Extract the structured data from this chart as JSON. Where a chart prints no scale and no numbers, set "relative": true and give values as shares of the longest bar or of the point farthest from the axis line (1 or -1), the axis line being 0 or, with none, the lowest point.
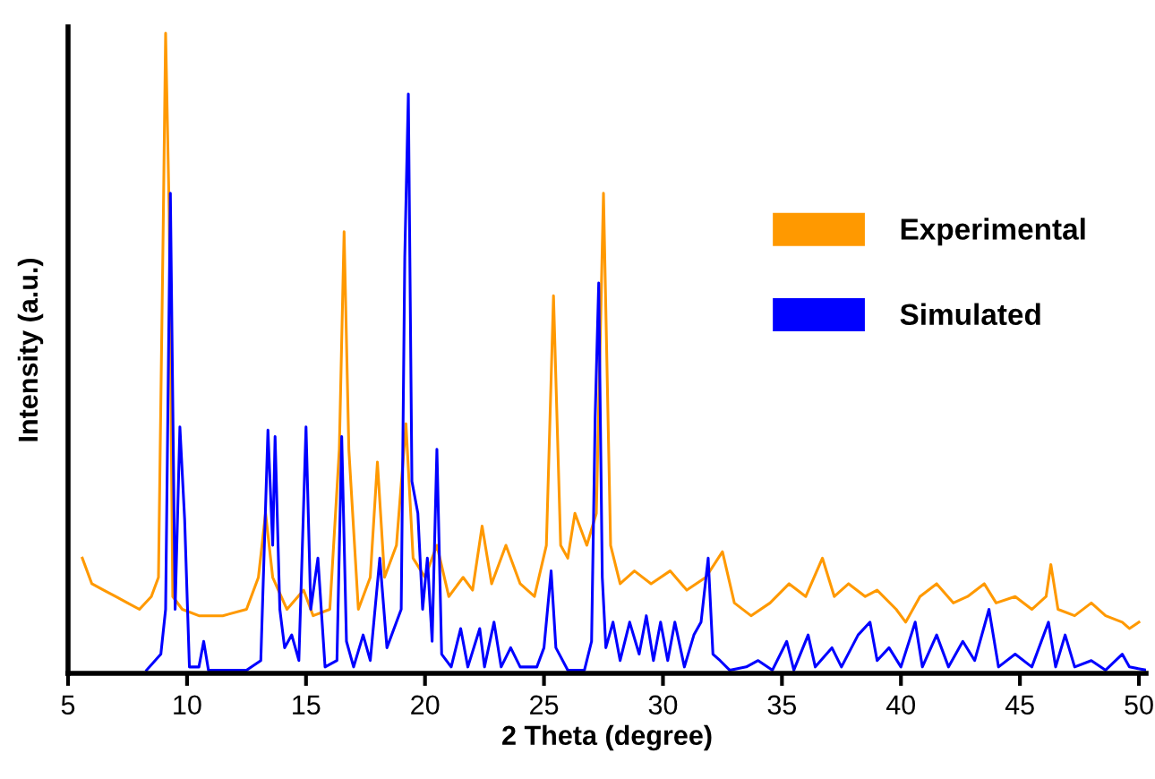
{
  "chart_data": {
    "type": "line",
    "relative": true,
    "xlabel": "2 Theta (degree)",
    "ylabel": "Intensity (a.u.)",
    "xlim": [
      5,
      50.3
    ],
    "xticks": [
      5,
      10,
      15,
      20,
      25,
      30,
      35,
      40,
      45,
      50
    ],
    "grid": false,
    "legend": "right",
    "marker": "none",
    "line_style": "solid",
    "series": [
      {
        "name": "Experimental",
        "color": "#ff9900",
        "x": [
          5.6,
          6.0,
          6.5,
          7.0,
          7.5,
          8.0,
          8.5,
          8.8,
          9.0,
          9.1,
          9.25,
          9.4,
          9.8,
          10.5,
          11.5,
          12.5,
          13.0,
          13.3,
          13.6,
          14.2,
          14.9,
          15.3,
          16.0,
          16.4,
          16.6,
          16.8,
          17.2,
          17.7,
          18.0,
          18.3,
          18.8,
          19.2,
          19.5,
          20.0,
          20.5,
          21.0,
          21.6,
          22.0,
          22.4,
          22.8,
          23.4,
          24.0,
          24.6,
          25.1,
          25.4,
          25.7,
          26.0,
          26.3,
          26.8,
          27.2,
          27.5,
          27.8,
          28.2,
          28.8,
          29.5,
          30.3,
          31.0,
          31.8,
          32.5,
          33.0,
          33.7,
          34.5,
          35.3,
          36.0,
          36.7,
          37.2,
          37.8,
          38.5,
          39.0,
          39.8,
          40.2,
          40.8,
          41.5,
          42.2,
          42.8,
          43.5,
          44.0,
          44.8,
          45.5,
          46.1,
          46.3,
          46.6,
          47.3,
          48.0,
          48.6,
          49.3,
          49.6,
          50.0
        ],
        "values": [
          0.18,
          0.14,
          0.13,
          0.12,
          0.11,
          0.1,
          0.12,
          0.15,
          0.7,
          1.0,
          0.72,
          0.12,
          0.1,
          0.09,
          0.09,
          0.1,
          0.15,
          0.25,
          0.15,
          0.1,
          0.13,
          0.09,
          0.1,
          0.35,
          0.69,
          0.35,
          0.1,
          0.15,
          0.33,
          0.15,
          0.2,
          0.39,
          0.18,
          0.15,
          0.2,
          0.12,
          0.15,
          0.13,
          0.23,
          0.14,
          0.2,
          0.14,
          0.12,
          0.2,
          0.59,
          0.2,
          0.18,
          0.25,
          0.2,
          0.25,
          0.75,
          0.2,
          0.14,
          0.16,
          0.14,
          0.16,
          0.13,
          0.15,
          0.19,
          0.11,
          0.09,
          0.11,
          0.14,
          0.12,
          0.18,
          0.12,
          0.14,
          0.12,
          0.13,
          0.1,
          0.08,
          0.12,
          0.14,
          0.11,
          0.12,
          0.14,
          0.11,
          0.12,
          0.1,
          0.12,
          0.17,
          0.1,
          0.09,
          0.11,
          0.09,
          0.08,
          0.07,
          0.08
        ]
      },
      {
        "name": "Simulated",
        "color": "#0000ff",
        "x": [
          8.3,
          8.9,
          9.1,
          9.3,
          9.5,
          9.7,
          9.9,
          10.1,
          10.5,
          10.7,
          10.9,
          12.5,
          13.1,
          13.4,
          13.6,
          13.7,
          13.9,
          14.1,
          14.4,
          14.7,
          15.0,
          15.2,
          15.5,
          15.8,
          16.3,
          16.5,
          16.7,
          17.0,
          17.4,
          17.7,
          18.1,
          18.4,
          18.8,
          19.0,
          19.15,
          19.3,
          19.45,
          19.7,
          19.9,
          20.1,
          20.3,
          20.5,
          20.7,
          21.1,
          21.5,
          21.8,
          22.3,
          22.5,
          22.9,
          23.2,
          23.6,
          24.0,
          24.7,
          25.0,
          25.3,
          25.5,
          26.0,
          26.7,
          27.0,
          27.15,
          27.3,
          27.45,
          27.6,
          27.9,
          28.2,
          28.6,
          29.0,
          29.3,
          29.6,
          29.9,
          30.2,
          30.5,
          30.9,
          31.3,
          31.6,
          31.9,
          32.1,
          32.4,
          32.8,
          33.5,
          34.0,
          34.6,
          35.2,
          35.5,
          36.1,
          36.4,
          37.1,
          37.5,
          38.2,
          38.7,
          39.0,
          39.5,
          40.0,
          40.6,
          40.9,
          41.5,
          42.0,
          42.6,
          43.1,
          43.7,
          44.1,
          44.8,
          45.5,
          46.2,
          46.5,
          46.9,
          47.3,
          48.0,
          48.6,
          49.3,
          49.6,
          50.3
        ],
        "values": [
          0.005,
          0.03,
          0.1,
          0.75,
          0.1,
          0.385,
          0.24,
          0.01,
          0.01,
          0.05,
          0.005,
          0.005,
          0.02,
          0.38,
          0.2,
          0.37,
          0.1,
          0.04,
          0.06,
          0.02,
          0.385,
          0.1,
          0.18,
          0.01,
          0.02,
          0.37,
          0.05,
          0.01,
          0.06,
          0.02,
          0.18,
          0.04,
          0.08,
          0.1,
          0.65,
          0.905,
          0.3,
          0.25,
          0.1,
          0.18,
          0.05,
          0.35,
          0.03,
          0.01,
          0.07,
          0.01,
          0.07,
          0.01,
          0.08,
          0.01,
          0.04,
          0.01,
          0.01,
          0.04,
          0.16,
          0.04,
          0.005,
          0.005,
          0.05,
          0.4,
          0.61,
          0.15,
          0.04,
          0.08,
          0.02,
          0.08,
          0.03,
          0.09,
          0.02,
          0.08,
          0.02,
          0.08,
          0.01,
          0.06,
          0.08,
          0.18,
          0.03,
          0.02,
          0.005,
          0.01,
          0.02,
          0.005,
          0.05,
          0.005,
          0.06,
          0.01,
          0.04,
          0.01,
          0.06,
          0.08,
          0.02,
          0.04,
          0.01,
          0.08,
          0.01,
          0.06,
          0.01,
          0.05,
          0.02,
          0.1,
          0.01,
          0.03,
          0.01,
          0.08,
          0.01,
          0.06,
          0.01,
          0.02,
          0.005,
          0.03,
          0.01,
          0.005
        ]
      }
    ]
  }
}
